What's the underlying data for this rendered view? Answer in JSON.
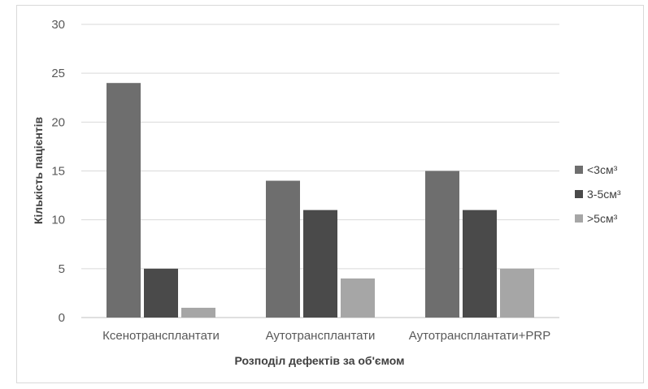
{
  "chart_data": {
    "type": "bar",
    "categories": [
      "Ксенотрансплантати",
      "Аутотрансплантати",
      "Аутотрансплантати+PRP"
    ],
    "series": [
      {
        "name": "<3см³",
        "values": [
          24,
          14,
          15
        ],
        "color": "#6e6e6e"
      },
      {
        "name": "3-5см³",
        "values": [
          5,
          11,
          11
        ],
        "color": "#4a4a4a"
      },
      {
        "name": ">5см³",
        "values": [
          1,
          4,
          5
        ],
        "color": "#a6a6a6"
      }
    ],
    "xlabel": "Розподіл дефектів за об'ємом",
    "ylabel": "Кількість пацієнтів",
    "ylim": [
      0,
      30
    ],
    "yticks": [
      0,
      5,
      10,
      15,
      20,
      25,
      30
    ],
    "grid": true,
    "legend_position": "right"
  }
}
